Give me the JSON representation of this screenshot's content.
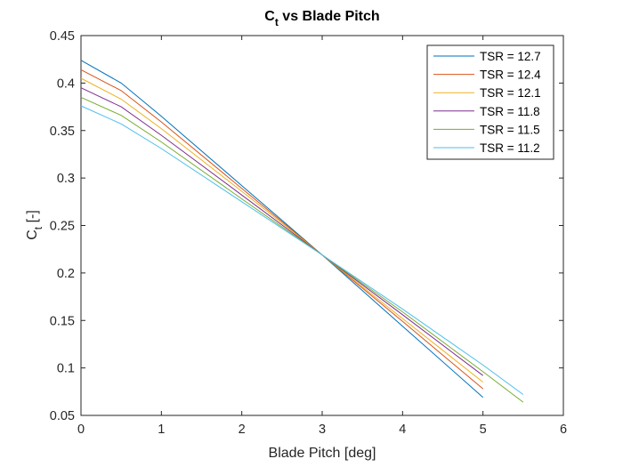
{
  "chart_data": {
    "type": "line",
    "title": "C",
    "title_sub": "t",
    "title_rest": " vs Blade Pitch",
    "xlabel": "Blade Pitch [deg]",
    "ylabel": "C",
    "ylabel_sub": "t",
    "ylabel_rest": " [-]",
    "xlim": [
      0,
      6
    ],
    "ylim": [
      0.05,
      0.45
    ],
    "xticks": [
      "0",
      "1",
      "2",
      "3",
      "4",
      "5",
      "6"
    ],
    "yticks": [
      "0.05",
      "0.1",
      "0.15",
      "0.2",
      "0.25",
      "0.3",
      "0.35",
      "0.4",
      "0.45"
    ],
    "grid": false,
    "legend_position": "top-right",
    "series": [
      {
        "name": "TSR = 12.7",
        "color": "#0072BD",
        "x": [
          0,
          0.5,
          1,
          2,
          3,
          4,
          5
        ],
        "y": [
          0.424,
          0.4,
          0.365,
          0.292,
          0.219,
          0.144,
          0.069
        ]
      },
      {
        "name": "TSR = 12.4",
        "color": "#D95319",
        "x": [
          0,
          0.5,
          1,
          2,
          3,
          4,
          5
        ],
        "y": [
          0.414,
          0.392,
          0.359,
          0.289,
          0.219,
          0.149,
          0.078
        ]
      },
      {
        "name": "TSR = 12.1",
        "color": "#EDB120",
        "x": [
          0,
          0.5,
          1,
          2,
          3,
          4,
          5
        ],
        "y": [
          0.405,
          0.383,
          0.352,
          0.286,
          0.219,
          0.152,
          0.085
        ]
      },
      {
        "name": "TSR = 11.8",
        "color": "#7E2F8E",
        "x": [
          0,
          0.5,
          1,
          2,
          3,
          4,
          5
        ],
        "y": [
          0.395,
          0.375,
          0.345,
          0.282,
          0.219,
          0.156,
          0.092
        ]
      },
      {
        "name": "TSR = 11.5",
        "color": "#77AC30",
        "x": [
          0,
          0.5,
          1,
          2,
          3,
          4,
          5,
          5.5
        ],
        "y": [
          0.385,
          0.366,
          0.338,
          0.278,
          0.219,
          0.159,
          0.096,
          0.064
        ]
      },
      {
        "name": "TSR = 11.2",
        "color": "#4DBEEE",
        "x": [
          0,
          0.5,
          1,
          2,
          3,
          4,
          5,
          5.5
        ],
        "y": [
          0.376,
          0.357,
          0.331,
          0.275,
          0.219,
          0.162,
          0.103,
          0.072
        ]
      }
    ]
  }
}
